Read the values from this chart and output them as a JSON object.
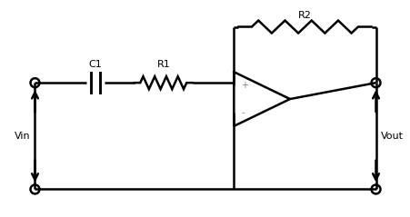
{
  "bg_color": "#ffffff",
  "line_color": "#000000",
  "text_color": "#808080",
  "label_color": "#000000",
  "vin_label": "Vin",
  "vout_label": "Vout",
  "c1_label": "C1",
  "r1_label": "R1",
  "r2_label": "R2",
  "plus_label": "+",
  "minus_label": "-",
  "lw": 1.8
}
